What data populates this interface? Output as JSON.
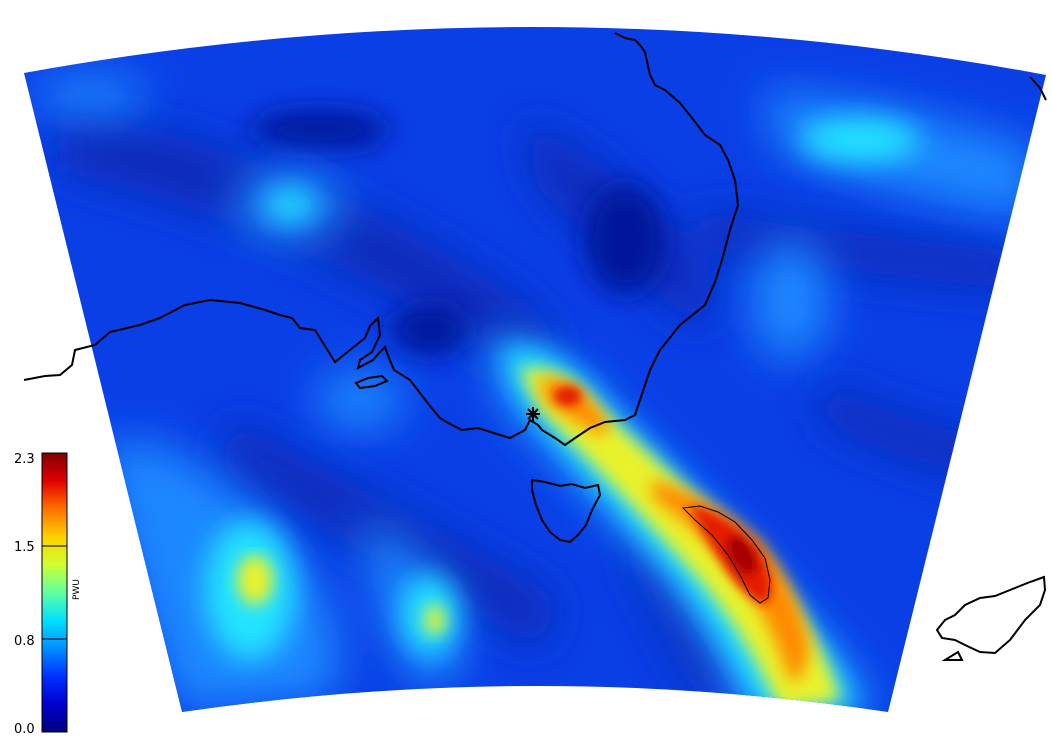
{
  "map": {
    "projection": "conic sector",
    "field": "PWV",
    "region": "South-eastern Australia, Tasmania, Tasman Sea and New Zealand",
    "station_marker": "asterisk",
    "coastline_color": "#000000"
  },
  "colorbar": {
    "unit": "PWU",
    "min": 0.0,
    "max": 2.3,
    "ticks": [
      "2.3",
      "1.5",
      "0.8",
      "0.0"
    ],
    "colors": [
      "#000080",
      "#0000d0",
      "#0030ff",
      "#0090ff",
      "#00e0ff",
      "#60ffa0",
      "#d0ff30",
      "#ffd000",
      "#ff7000",
      "#e00000",
      "#800000"
    ]
  },
  "colors": {
    "background_field": "#0a3fe6",
    "dark_band": "#0a2ab8",
    "deepest": "#06179a",
    "light_blue": "#1e88ff",
    "cyan": "#22e4ff",
    "yellow": "#e9f22a",
    "orange": "#ff8a00",
    "red": "#e41a00",
    "dark_red": "#a40000"
  }
}
